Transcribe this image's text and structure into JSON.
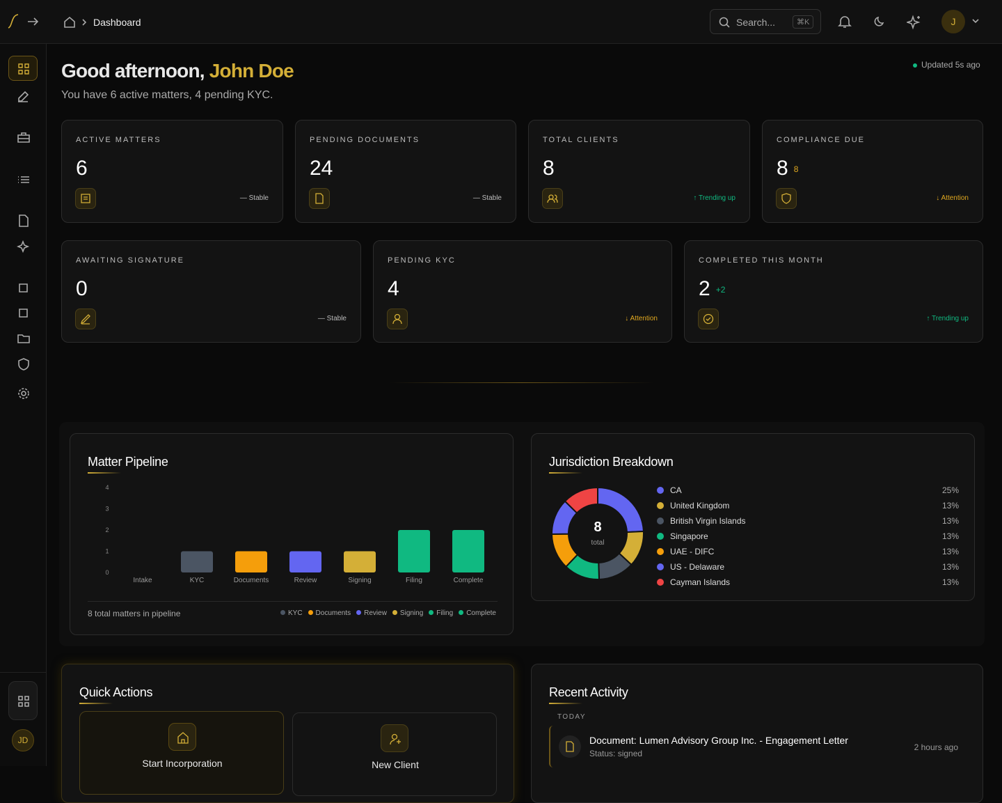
{
  "header": {
    "breadcrumb": "Dashboard",
    "search_placeholder": "Search...",
    "shortcut": "⌘K",
    "avatar": "J"
  },
  "sidebar": {
    "avatar": "JD"
  },
  "greeting": {
    "salutation": "Good afternoon,",
    "name": "John Doe",
    "subtitle": "You have 6 active matters, 4 pending KYC.",
    "status": "Updated 5s ago"
  },
  "stats": [
    {
      "label": "ACTIVE MATTERS",
      "value": 6,
      "trend": "Stable"
    },
    {
      "label": "PENDING DOCUMENTS",
      "value": 24,
      "trend": "Stable"
    },
    {
      "label": "TOTAL CLIENTS",
      "value": 8,
      "trend": "Trending up"
    },
    {
      "label": "COMPLIANCE DUE",
      "value": 8,
      "badge": 8,
      "trend": "Attention"
    },
    {
      "label": "AWAITING SIGNATURE",
      "value": 0,
      "trend": "Stable"
    },
    {
      "label": "PENDING KYC",
      "value": 4,
      "trend": "Attention"
    },
    {
      "label": "COMPLETED THIS MONTH",
      "value": 2,
      "badge": "+2",
      "trend": "Trending up"
    }
  ],
  "pipeline": {
    "type": "bar",
    "title": "Matter Pipeline",
    "categories": [
      "Intake",
      "KYC",
      "Documents",
      "Review",
      "Signing",
      "Filing",
      "Complete"
    ],
    "values": [
      0,
      1,
      1,
      1,
      1,
      2,
      2
    ],
    "colors": [
      null,
      "#4b5563",
      "#f59e0b",
      "#6366f1",
      "#d4af37",
      "#10b981",
      "#10b981"
    ],
    "ylim": [
      0,
      4
    ],
    "yticks": [
      0,
      1,
      2,
      3,
      4
    ],
    "footer": "8 total matters in pipeline"
  },
  "jurisdictions": {
    "type": "donut",
    "title": "Jurisdiction Breakdown",
    "center_value": 8,
    "center_label": "total",
    "categories": [
      "CA",
      "United Kingdom",
      "British Virgin Islands",
      "Singapore",
      "UAE - DIFC",
      "US - Delaware",
      "Cayman Islands"
    ],
    "values": [
      25,
      13,
      13,
      13,
      13,
      13,
      13
    ],
    "value_labels": [
      "25%",
      "13%",
      "13%",
      "13%",
      "13%",
      "13%",
      "13%"
    ],
    "colors": [
      "#6366f1",
      "#d4af37",
      "#4b5563",
      "#10b981",
      "#f59e0b",
      "#6366f1",
      "#ef4444"
    ]
  },
  "quick_actions": {
    "title": "Quick Actions",
    "actions": [
      "Start Incorporation",
      "New Client"
    ]
  },
  "activity": {
    "title": "Recent Activity",
    "group": "TODAY",
    "items": [
      {
        "title": "Document: Lumen Advisory Group Inc. - Engagement Letter",
        "status": "Status: signed",
        "time": "2 hours ago"
      }
    ]
  }
}
